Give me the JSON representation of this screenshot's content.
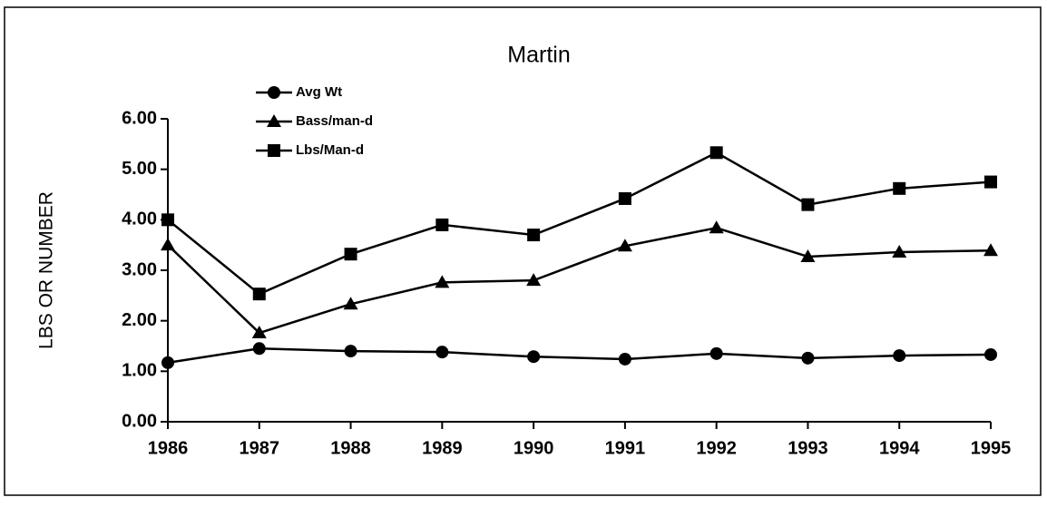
{
  "chart_data": {
    "type": "line",
    "title": "Martin",
    "y_label": "LBS OR NUMBER",
    "categories": [
      "1986",
      "1987",
      "1988",
      "1989",
      "1990",
      "1991",
      "1992",
      "1993",
      "1994",
      "1995"
    ],
    "series": [
      {
        "name": "Avg Wt",
        "color": "#000000",
        "marker": "circle",
        "values": [
          1.17,
          1.45,
          1.4,
          1.38,
          1.29,
          1.24,
          1.35,
          1.26,
          1.31,
          1.33
        ]
      },
      {
        "name": "Bass/man-d",
        "color": "#000000",
        "marker": "triangle",
        "values": [
          3.5,
          1.76,
          2.33,
          2.76,
          2.8,
          3.48,
          3.84,
          3.27,
          3.36,
          3.39
        ]
      },
      {
        "name": "Lbs/Man-d",
        "color": "#000000",
        "marker": "square",
        "values": [
          4.0,
          2.53,
          3.32,
          3.9,
          3.7,
          4.42,
          5.33,
          4.3,
          4.62,
          4.75
        ]
      }
    ],
    "ylim": [
      0,
      6
    ],
    "yticks": [
      {
        "value": 0,
        "label": "0.00"
      },
      {
        "value": 1,
        "label": "1.00"
      },
      {
        "value": 2,
        "label": "2.00"
      },
      {
        "value": 3,
        "label": "3.00"
      },
      {
        "value": 4,
        "label": "4.00"
      },
      {
        "value": 5,
        "label": "5.00"
      },
      {
        "value": 6,
        "label": "6.00"
      }
    ],
    "grid": false
  }
}
